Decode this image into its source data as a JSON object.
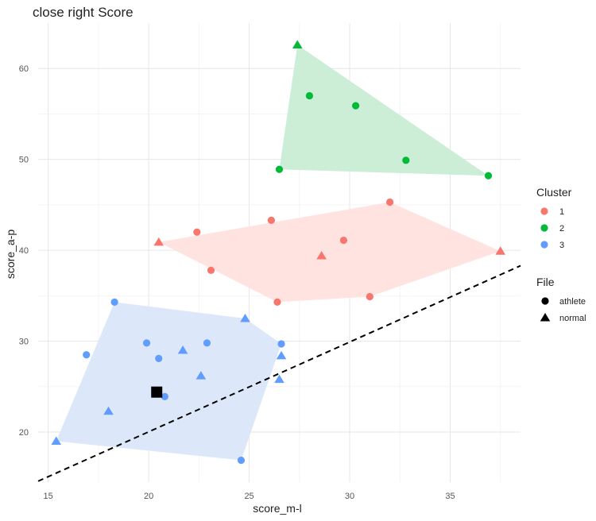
{
  "chart_data": {
    "type": "scatter",
    "title": "close right Score",
    "xlabel": "score_m-l",
    "ylabel": "score_a-p",
    "xlim": [
      14.5,
      38.5
    ],
    "ylim": [
      14.5,
      65
    ],
    "x_ticks": [
      15,
      20,
      25,
      30,
      35
    ],
    "y_ticks": [
      20,
      30,
      40,
      50,
      60
    ],
    "grid": true,
    "legend_position": "right",
    "clusters": [
      {
        "name": "1",
        "color": "#F8766D",
        "fill": "#FFE3E1",
        "hull": [
          [
            20.5,
            40.9
          ],
          [
            32.0,
            45.3
          ],
          [
            37.5,
            39.9
          ],
          [
            31.0,
            34.9
          ],
          [
            26.4,
            34.3
          ]
        ],
        "points": [
          {
            "x": 20.5,
            "y": 40.9,
            "file": "normal"
          },
          {
            "x": 22.4,
            "y": 42.0,
            "file": "athlete"
          },
          {
            "x": 23.1,
            "y": 37.8,
            "file": "athlete"
          },
          {
            "x": 26.1,
            "y": 43.3,
            "file": "athlete"
          },
          {
            "x": 26.4,
            "y": 34.3,
            "file": "athlete"
          },
          {
            "x": 28.6,
            "y": 39.4,
            "file": "normal"
          },
          {
            "x": 29.7,
            "y": 41.1,
            "file": "athlete"
          },
          {
            "x": 31.0,
            "y": 34.9,
            "file": "athlete"
          },
          {
            "x": 32.0,
            "y": 45.3,
            "file": "athlete"
          },
          {
            "x": 37.5,
            "y": 39.9,
            "file": "normal"
          }
        ]
      },
      {
        "name": "2",
        "color": "#00BA38",
        "fill": "#CCEED6",
        "hull": [
          [
            27.4,
            62.6
          ],
          [
            36.9,
            48.2
          ],
          [
            26.5,
            48.9
          ]
        ],
        "points": [
          {
            "x": 27.4,
            "y": 62.6,
            "file": "normal"
          },
          {
            "x": 28.0,
            "y": 57.0,
            "file": "athlete"
          },
          {
            "x": 30.3,
            "y": 55.9,
            "file": "athlete"
          },
          {
            "x": 32.8,
            "y": 49.9,
            "file": "athlete"
          },
          {
            "x": 36.9,
            "y": 48.2,
            "file": "athlete"
          },
          {
            "x": 26.5,
            "y": 48.9,
            "file": "athlete"
          }
        ]
      },
      {
        "name": "3",
        "color": "#619CFF",
        "fill": "#DCE8FA",
        "hull": [
          [
            15.4,
            19.0
          ],
          [
            18.3,
            34.3
          ],
          [
            24.8,
            32.5
          ],
          [
            26.6,
            29.7
          ],
          [
            24.6,
            16.9
          ]
        ],
        "points": [
          {
            "x": 15.4,
            "y": 19.0,
            "file": "normal"
          },
          {
            "x": 16.9,
            "y": 28.5,
            "file": "athlete"
          },
          {
            "x": 18.0,
            "y": 22.3,
            "file": "normal"
          },
          {
            "x": 18.3,
            "y": 34.3,
            "file": "athlete"
          },
          {
            "x": 19.9,
            "y": 29.8,
            "file": "athlete"
          },
          {
            "x": 20.5,
            "y": 28.1,
            "file": "athlete"
          },
          {
            "x": 20.8,
            "y": 23.9,
            "file": "athlete"
          },
          {
            "x": 21.7,
            "y": 29.0,
            "file": "normal"
          },
          {
            "x": 22.6,
            "y": 26.2,
            "file": "normal"
          },
          {
            "x": 22.9,
            "y": 29.8,
            "file": "athlete"
          },
          {
            "x": 24.6,
            "y": 16.9,
            "file": "athlete"
          },
          {
            "x": 24.8,
            "y": 32.5,
            "file": "normal"
          },
          {
            "x": 26.5,
            "y": 25.8,
            "file": "normal"
          },
          {
            "x": 26.6,
            "y": 28.4,
            "file": "normal"
          },
          {
            "x": 26.6,
            "y": 29.7,
            "file": "athlete"
          }
        ]
      }
    ],
    "highlight_point": {
      "x": 20.4,
      "y": 24.4,
      "color": "#000000"
    },
    "reference_line": {
      "from": [
        14.5,
        14.6
      ],
      "to": [
        38.5,
        38.3
      ],
      "style": "dashed",
      "color": "#000000"
    },
    "legend": {
      "cluster_title": "Cluster",
      "cluster_items": [
        {
          "label": "1",
          "color": "#F8766D"
        },
        {
          "label": "2",
          "color": "#00BA38"
        },
        {
          "label": "3",
          "color": "#619CFF"
        }
      ],
      "file_title": "File",
      "file_items": [
        {
          "label": "athlete",
          "shape": "circle"
        },
        {
          "label": "normal",
          "shape": "triangle"
        }
      ]
    }
  }
}
